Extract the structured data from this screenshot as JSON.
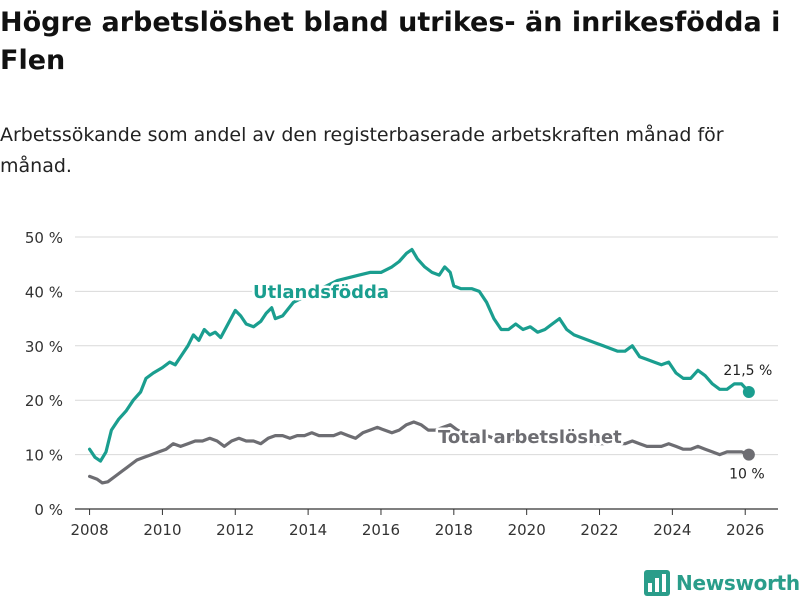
{
  "title": "Högre arbetslöshet bland utrikes- än inrikesfödda i Flen",
  "subtitle": "Arbetssökande som andel av den registerbaserade arbetskraften månad för månad.",
  "brand": {
    "name": "Newsworthy",
    "icon": "bar-chart-logo-icon"
  },
  "colors": {
    "foreign": "#1a9e8f",
    "total": "#6d6d72",
    "grid": "#d9d9d9",
    "axis": "#333333"
  },
  "chart_data": {
    "type": "line",
    "xlim": [
      2007.6,
      2026.9
    ],
    "ylim": [
      0,
      50
    ],
    "y_ticks": [
      0,
      10,
      20,
      30,
      40,
      50
    ],
    "y_tick_labels": [
      "0 %",
      "10 %",
      "20 %",
      "30 %",
      "40 %",
      "50 %"
    ],
    "x_ticks": [
      2008,
      2010,
      2012,
      2014,
      2016,
      2018,
      2020,
      2022,
      2024,
      2026
    ],
    "x_tick_labels": [
      "2008",
      "2010",
      "2012",
      "2014",
      "2016",
      "2018",
      "2020",
      "2022",
      "2024",
      "2026"
    ],
    "series": [
      {
        "name": "Utlandsfödda",
        "end_label": "21,5 %",
        "points": [
          [
            2008.0,
            11.0
          ],
          [
            2008.15,
            9.5
          ],
          [
            2008.3,
            8.8
          ],
          [
            2008.45,
            10.5
          ],
          [
            2008.6,
            14.5
          ],
          [
            2008.8,
            16.5
          ],
          [
            2009.0,
            18.0
          ],
          [
            2009.2,
            20.0
          ],
          [
            2009.4,
            21.5
          ],
          [
            2009.55,
            24.0
          ],
          [
            2009.75,
            25.0
          ],
          [
            2010.0,
            26.0
          ],
          [
            2010.2,
            27.0
          ],
          [
            2010.35,
            26.5
          ],
          [
            2010.5,
            28.0
          ],
          [
            2010.7,
            30.0
          ],
          [
            2010.85,
            32.0
          ],
          [
            2011.0,
            31.0
          ],
          [
            2011.15,
            33.0
          ],
          [
            2011.3,
            32.0
          ],
          [
            2011.45,
            32.5
          ],
          [
            2011.6,
            31.5
          ],
          [
            2011.8,
            34.0
          ],
          [
            2012.0,
            36.5
          ],
          [
            2012.15,
            35.5
          ],
          [
            2012.3,
            34.0
          ],
          [
            2012.5,
            33.5
          ],
          [
            2012.7,
            34.5
          ],
          [
            2012.85,
            36.0
          ],
          [
            2013.0,
            37.0
          ],
          [
            2013.1,
            35.0
          ],
          [
            2013.3,
            35.5
          ],
          [
            2013.6,
            38.0
          ],
          [
            2013.9,
            39.0
          ],
          [
            2014.2,
            40.0
          ],
          [
            2014.5,
            41.0
          ],
          [
            2014.8,
            42.0
          ],
          [
            2015.1,
            42.5
          ],
          [
            2015.4,
            43.0
          ],
          [
            2015.7,
            43.5
          ],
          [
            2016.0,
            43.5
          ],
          [
            2016.3,
            44.5
          ],
          [
            2016.5,
            45.5
          ],
          [
            2016.7,
            47.0
          ],
          [
            2016.85,
            47.7
          ],
          [
            2017.0,
            46.0
          ],
          [
            2017.2,
            44.5
          ],
          [
            2017.4,
            43.5
          ],
          [
            2017.6,
            43.0
          ],
          [
            2017.75,
            44.5
          ],
          [
            2017.9,
            43.5
          ],
          [
            2018.0,
            41.0
          ],
          [
            2018.2,
            40.5
          ],
          [
            2018.5,
            40.5
          ],
          [
            2018.7,
            40.0
          ],
          [
            2018.9,
            38.0
          ],
          [
            2019.1,
            35.0
          ],
          [
            2019.3,
            33.0
          ],
          [
            2019.5,
            33.0
          ],
          [
            2019.7,
            34.0
          ],
          [
            2019.9,
            33.0
          ],
          [
            2020.1,
            33.5
          ],
          [
            2020.3,
            32.5
          ],
          [
            2020.5,
            33.0
          ],
          [
            2020.7,
            34.0
          ],
          [
            2020.9,
            35.0
          ],
          [
            2021.1,
            33.0
          ],
          [
            2021.3,
            32.0
          ],
          [
            2021.5,
            31.5
          ],
          [
            2021.7,
            31.0
          ],
          [
            2021.9,
            30.5
          ],
          [
            2022.1,
            30.0
          ],
          [
            2022.3,
            29.5
          ],
          [
            2022.5,
            29.0
          ],
          [
            2022.7,
            29.0
          ],
          [
            2022.9,
            30.0
          ],
          [
            2023.1,
            28.0
          ],
          [
            2023.3,
            27.5
          ],
          [
            2023.5,
            27.0
          ],
          [
            2023.7,
            26.5
          ],
          [
            2023.9,
            27.0
          ],
          [
            2024.1,
            25.0
          ],
          [
            2024.3,
            24.0
          ],
          [
            2024.5,
            24.0
          ],
          [
            2024.7,
            25.5
          ],
          [
            2024.9,
            24.5
          ],
          [
            2025.1,
            23.0
          ],
          [
            2025.3,
            22.0
          ],
          [
            2025.5,
            22.0
          ],
          [
            2025.7,
            23.0
          ],
          [
            2025.9,
            23.0
          ],
          [
            2026.1,
            21.5
          ]
        ]
      },
      {
        "name": "Total arbetslöshet",
        "end_label": "10 %",
        "points": [
          [
            2008.0,
            6.0
          ],
          [
            2008.2,
            5.5
          ],
          [
            2008.35,
            4.8
          ],
          [
            2008.5,
            5.0
          ],
          [
            2008.7,
            6.0
          ],
          [
            2008.9,
            7.0
          ],
          [
            2009.1,
            8.0
          ],
          [
            2009.3,
            9.0
          ],
          [
            2009.5,
            9.5
          ],
          [
            2009.7,
            10.0
          ],
          [
            2009.9,
            10.5
          ],
          [
            2010.1,
            11.0
          ],
          [
            2010.3,
            12.0
          ],
          [
            2010.5,
            11.5
          ],
          [
            2010.7,
            12.0
          ],
          [
            2010.9,
            12.5
          ],
          [
            2011.1,
            12.5
          ],
          [
            2011.3,
            13.0
          ],
          [
            2011.5,
            12.5
          ],
          [
            2011.7,
            11.5
          ],
          [
            2011.9,
            12.5
          ],
          [
            2012.1,
            13.0
          ],
          [
            2012.3,
            12.5
          ],
          [
            2012.5,
            12.5
          ],
          [
            2012.7,
            12.0
          ],
          [
            2012.9,
            13.0
          ],
          [
            2013.1,
            13.5
          ],
          [
            2013.3,
            13.5
          ],
          [
            2013.5,
            13.0
          ],
          [
            2013.7,
            13.5
          ],
          [
            2013.9,
            13.5
          ],
          [
            2014.1,
            14.0
          ],
          [
            2014.3,
            13.5
          ],
          [
            2014.5,
            13.5
          ],
          [
            2014.7,
            13.5
          ],
          [
            2014.9,
            14.0
          ],
          [
            2015.1,
            13.5
          ],
          [
            2015.3,
            13.0
          ],
          [
            2015.5,
            14.0
          ],
          [
            2015.7,
            14.5
          ],
          [
            2015.9,
            15.0
          ],
          [
            2016.1,
            14.5
          ],
          [
            2016.3,
            14.0
          ],
          [
            2016.5,
            14.5
          ],
          [
            2016.7,
            15.5
          ],
          [
            2016.9,
            16.0
          ],
          [
            2017.1,
            15.5
          ],
          [
            2017.3,
            14.5
          ],
          [
            2017.5,
            14.5
          ],
          [
            2017.7,
            15.0
          ],
          [
            2017.9,
            15.5
          ],
          [
            2018.1,
            14.5
          ],
          [
            2018.3,
            14.0
          ],
          [
            2018.5,
            14.0
          ],
          [
            2018.7,
            13.5
          ],
          [
            2018.9,
            13.5
          ],
          [
            2019.1,
            13.0
          ],
          [
            2019.3,
            12.5
          ],
          [
            2019.5,
            12.5
          ],
          [
            2019.7,
            13.0
          ],
          [
            2019.9,
            12.5
          ],
          [
            2020.1,
            12.5
          ],
          [
            2020.3,
            13.0
          ],
          [
            2020.5,
            13.5
          ],
          [
            2020.7,
            13.5
          ],
          [
            2020.9,
            13.0
          ],
          [
            2021.1,
            12.5
          ],
          [
            2021.3,
            12.5
          ],
          [
            2021.5,
            12.0
          ],
          [
            2021.7,
            12.5
          ],
          [
            2021.9,
            12.0
          ],
          [
            2022.1,
            12.0
          ],
          [
            2022.3,
            12.5
          ],
          [
            2022.5,
            12.0
          ],
          [
            2022.7,
            12.0
          ],
          [
            2022.9,
            12.5
          ],
          [
            2023.1,
            12.0
          ],
          [
            2023.3,
            11.5
          ],
          [
            2023.5,
            11.5
          ],
          [
            2023.7,
            11.5
          ],
          [
            2023.9,
            12.0
          ],
          [
            2024.1,
            11.5
          ],
          [
            2024.3,
            11.0
          ],
          [
            2024.5,
            11.0
          ],
          [
            2024.7,
            11.5
          ],
          [
            2024.9,
            11.0
          ],
          [
            2025.1,
            10.5
          ],
          [
            2025.3,
            10.0
          ],
          [
            2025.5,
            10.5
          ],
          [
            2025.7,
            10.5
          ],
          [
            2025.9,
            10.5
          ],
          [
            2026.1,
            10.0
          ]
        ]
      }
    ]
  }
}
